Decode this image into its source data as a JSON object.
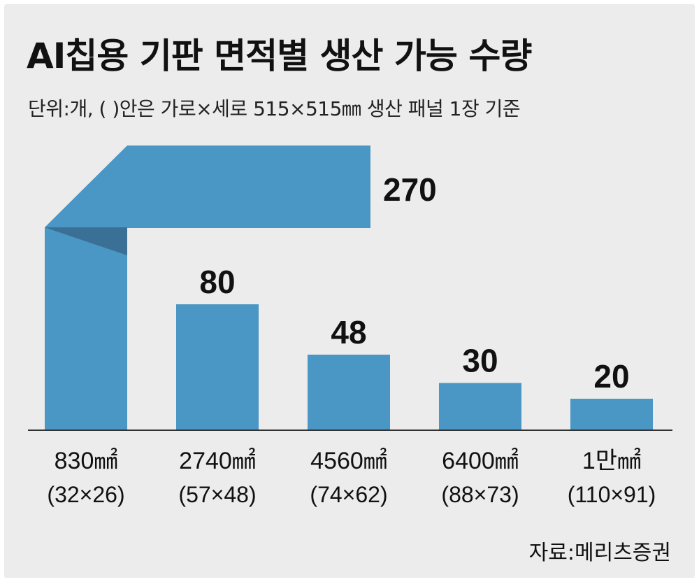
{
  "title": "AI칩용 기판 면적별 생산 가능 수량",
  "subtitle": "단위:개, ( )안은 가로×세로 515×515㎜ 생산 패널 1장 기준",
  "source": "자료:메리츠증권",
  "colors": {
    "bar": "#4a96c4",
    "bar_fold_shadow": "#3a6f96",
    "baseline": "#333333",
    "text": "#111111",
    "background": "#ececec"
  },
  "chart_data": {
    "type": "bar",
    "title": "AI칩용 기판 면적별 생산 가능 수량",
    "ylabel": "",
    "xlabel": "",
    "unit": "개",
    "categories": [
      "830㎟",
      "2740㎟",
      "4560㎟",
      "6400㎟",
      "1만㎟"
    ],
    "category_sublabels": [
      "(32×26)",
      "(57×48)",
      "(74×62)",
      "(88×73)",
      "(110×91)"
    ],
    "values": [
      270,
      80,
      48,
      30,
      20
    ],
    "data_labels": [
      "270",
      "80",
      "48",
      "30",
      "20"
    ],
    "ylim": [
      0,
      110
    ],
    "grid": false,
    "legend": "none",
    "note": "first bar exceeds the axis range and is drawn folded over"
  }
}
